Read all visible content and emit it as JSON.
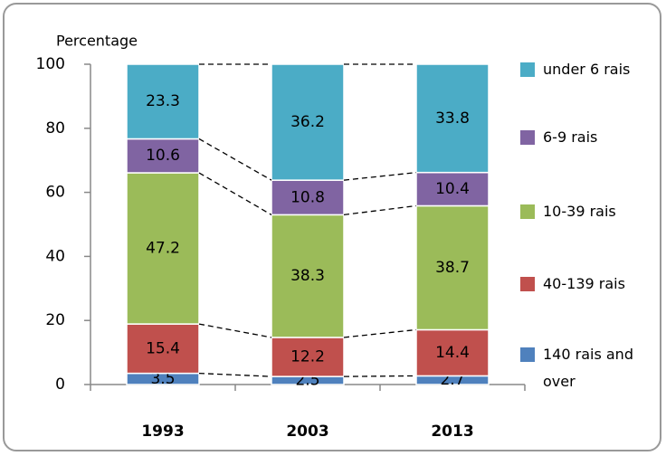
{
  "chart_data": {
    "type": "stacked_bar",
    "y_label": "Percentage",
    "categories": [
      "1993",
      "2003",
      "2013"
    ],
    "series": [
      {
        "name": "140 rais and over",
        "color": "#4f81bd",
        "values": [
          3.5,
          2.5,
          2.7
        ]
      },
      {
        "name": "40-139 rais",
        "color": "#c0504d",
        "values": [
          15.4,
          12.2,
          14.4
        ]
      },
      {
        "name": "10-39 rais",
        "color": "#9bbb59",
        "values": [
          47.2,
          38.3,
          38.7
        ]
      },
      {
        "name": "6-9 rais",
        "color": "#8064a2",
        "values": [
          10.6,
          10.8,
          10.4
        ]
      },
      {
        "name": "under 6 rais",
        "color": "#4bacc6",
        "values": [
          23.3,
          36.2,
          33.8
        ]
      }
    ],
    "ylim": [
      0,
      100
    ],
    "yticks": [
      0,
      20,
      40,
      60,
      80,
      100
    ],
    "grid": false
  }
}
